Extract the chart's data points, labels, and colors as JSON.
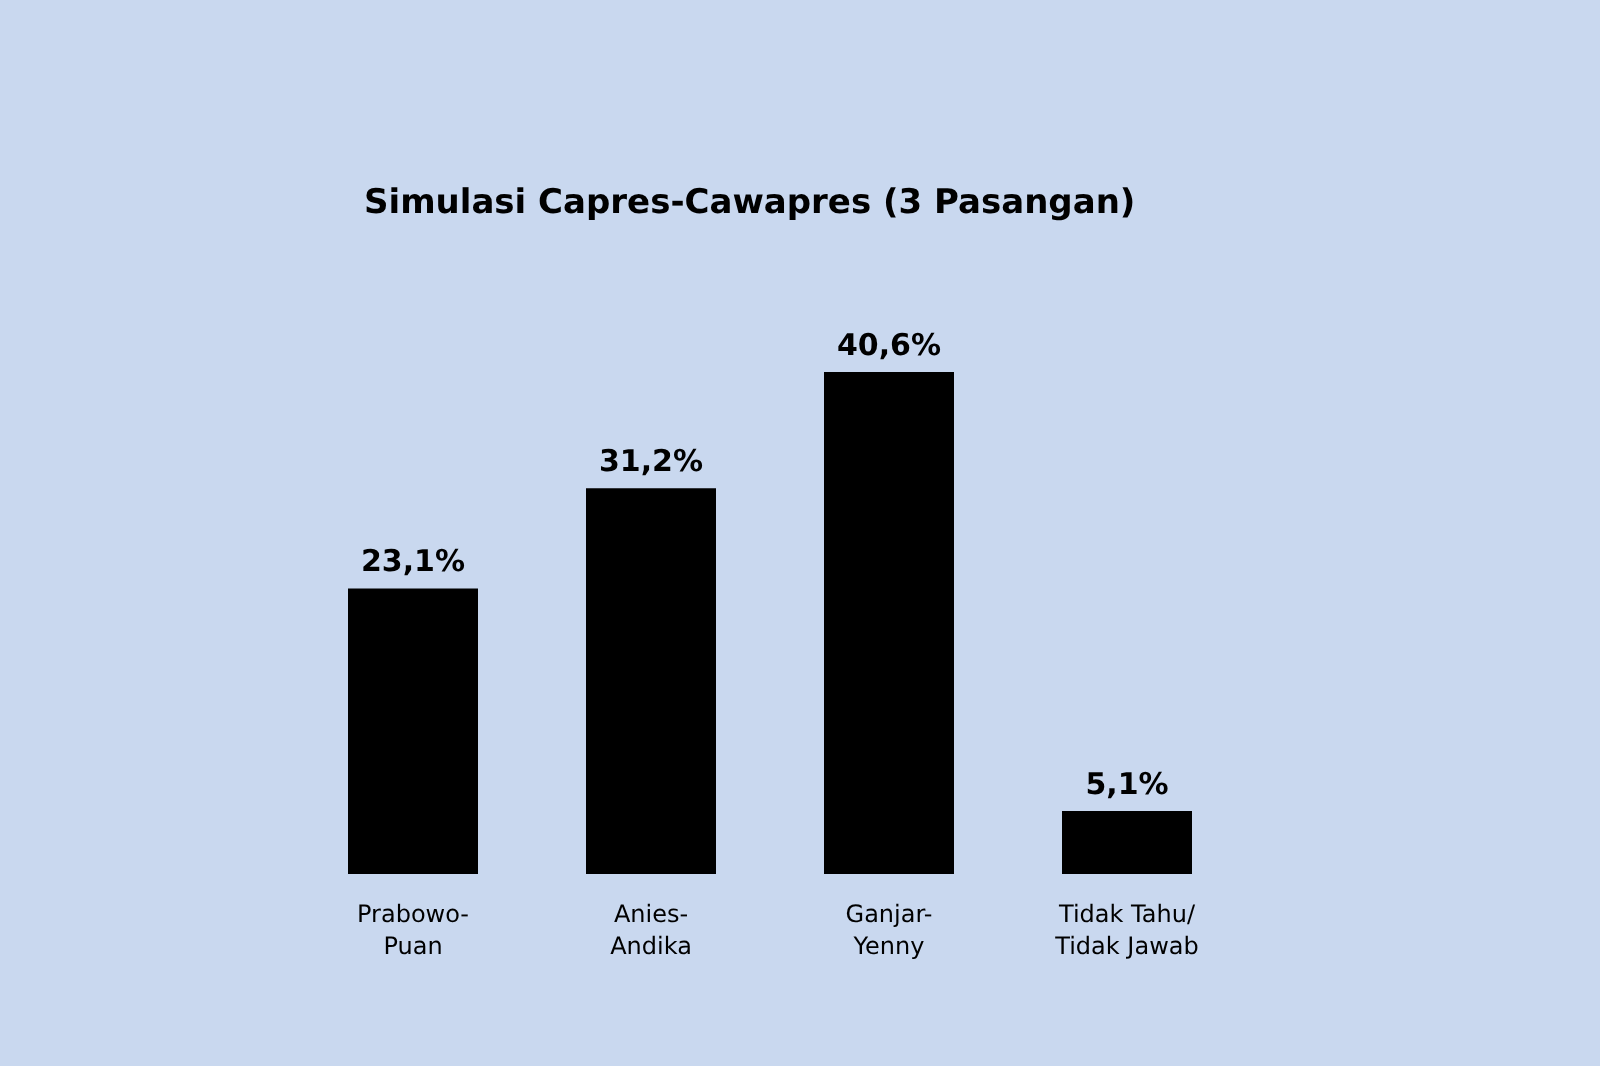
{
  "chart_data": {
    "type": "bar",
    "title": "Simulasi Capres-Cawapres (3 Pasangan)",
    "categories": [
      "Prabowo-Puan",
      "Anies-Andika",
      "Ganjar-Yenny",
      "Tidak Tahu/ Tidak Jawab"
    ],
    "values": [
      23.1,
      31.2,
      40.6,
      5.1
    ],
    "color": "#000000",
    "value_labels": [
      "23,1%",
      "31,2%",
      "40,6%",
      "5,1%"
    ]
  }
}
